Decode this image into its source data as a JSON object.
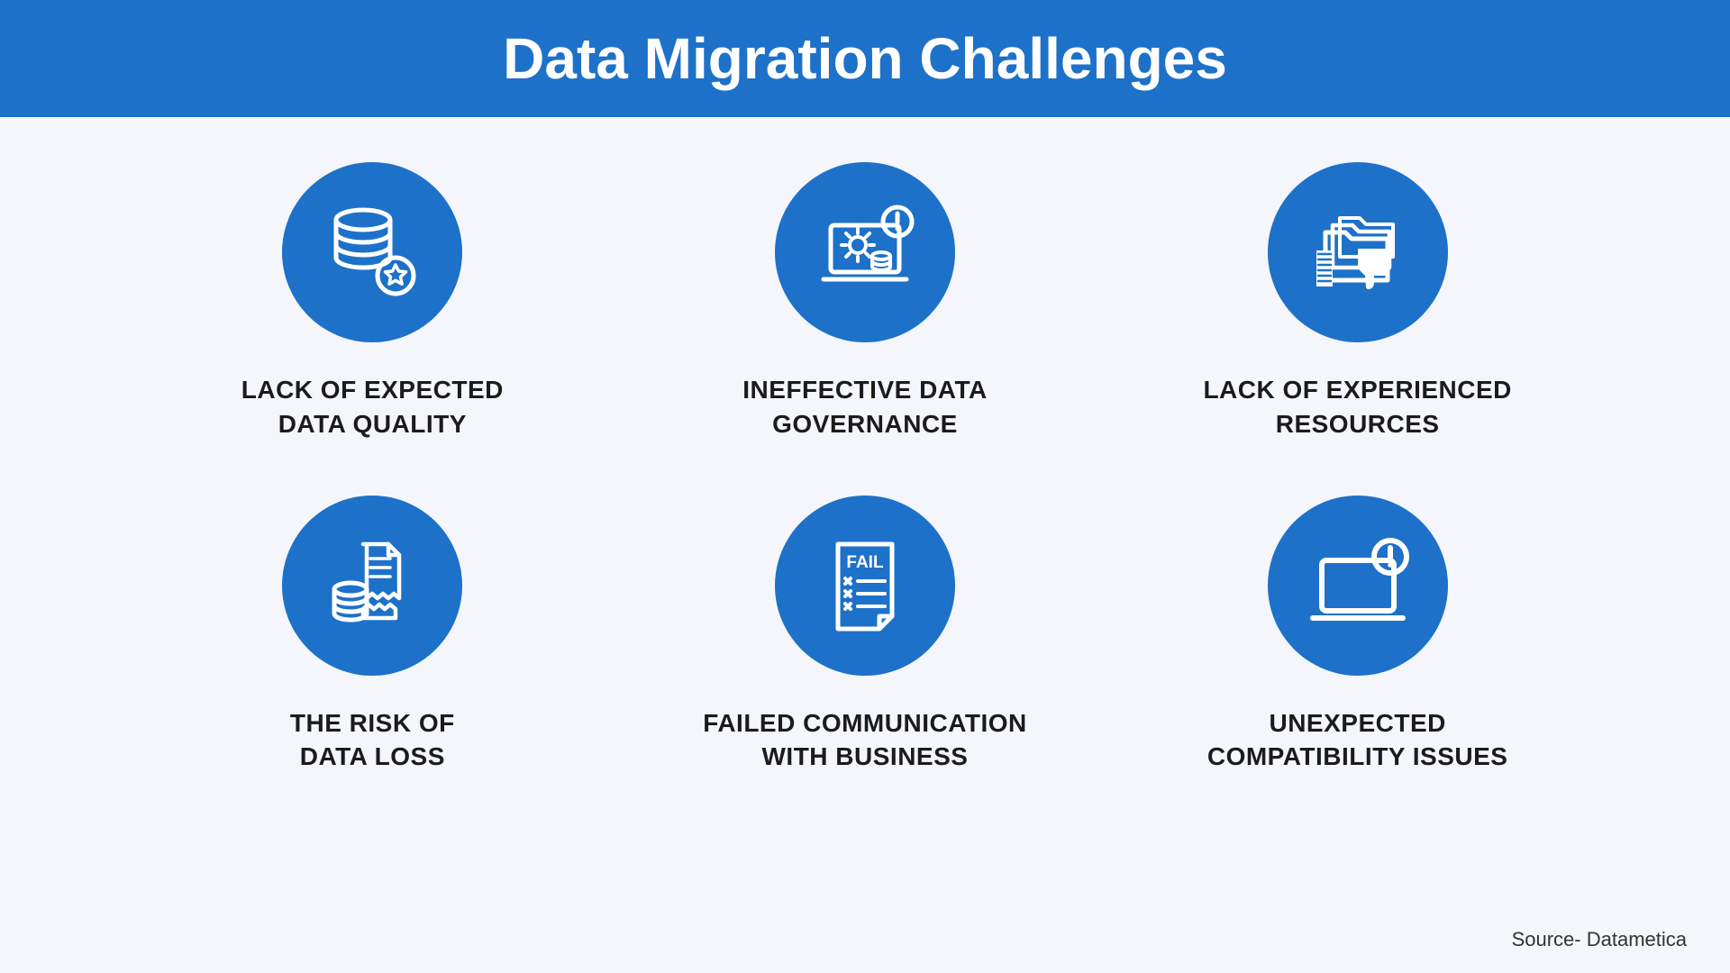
{
  "title": "Data Migration Challenges",
  "header_bg": "#1d71c9",
  "body_bg": "#f4f6fc",
  "circle_bg": "#1d71c9",
  "icon_stroke": "#ffffff",
  "text_color": "#1b1b1b",
  "title_fontsize": 64,
  "label_fontsize": 28,
  "circle_diameter": 200,
  "items": [
    {
      "label": "LACK OF EXPECTED\nDATA QUALITY"
    },
    {
      "label": "INEFFECTIVE DATA\nGOVERNANCE"
    },
    {
      "label": "LACK OF EXPERIENCED\nRESOURCES"
    },
    {
      "label": "THE RISK OF\nDATA LOSS"
    },
    {
      "label": "FAILED COMMUNICATION\nWITH BUSINESS"
    },
    {
      "label": "UNEXPECTED\nCOMPATIBILITY ISSUES"
    }
  ],
  "source": "Source- Datametica"
}
